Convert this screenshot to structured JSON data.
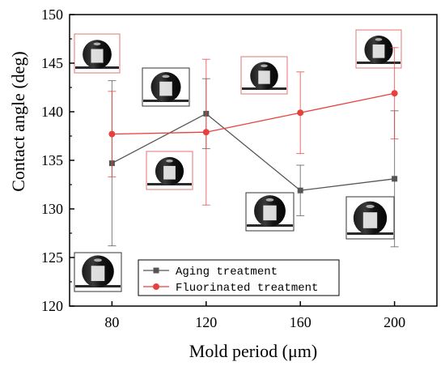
{
  "chart_data": {
    "type": "line",
    "x": [
      80,
      120,
      160,
      200
    ],
    "xlabel": "Mold period (μm)",
    "ylabel": "Contact angle (deg)",
    "xlim": [
      62,
      218
    ],
    "ylim": [
      120,
      150
    ],
    "xticks": [
      80,
      120,
      160,
      200
    ],
    "yticks": [
      120,
      125,
      130,
      135,
      140,
      145,
      150
    ],
    "grid": false,
    "legend_position": "bottom-right",
    "series": [
      {
        "name": "Aging treatment",
        "values": [
          134.7,
          139.8,
          131.9,
          133.1
        ],
        "error_low": [
          126.2,
          136.2,
          129.3,
          126.1
        ],
        "error_high": [
          143.2,
          143.4,
          134.5,
          140.1
        ],
        "color": "#555555",
        "marker": "square"
      },
      {
        "name": "Fluorinated treatment",
        "values": [
          137.7,
          137.9,
          139.9,
          141.9
        ],
        "error_low": [
          133.3,
          130.4,
          135.7,
          137.2
        ],
        "error_high": [
          142.1,
          145.4,
          144.1,
          146.6
        ],
        "color": "#e8413c",
        "marker": "circle"
      }
    ],
    "annotations": [
      {
        "type": "droplet-image",
        "series": "Fluorinated treatment",
        "x": 80
      },
      {
        "type": "droplet-image",
        "series": "Aging treatment",
        "x": 80
      },
      {
        "type": "droplet-image",
        "series": "Aging treatment",
        "x": 120
      },
      {
        "type": "droplet-image",
        "series": "Fluorinated treatment",
        "x": 120
      },
      {
        "type": "droplet-image",
        "series": "Fluorinated treatment",
        "x": 160
      },
      {
        "type": "droplet-image",
        "series": "Aging treatment",
        "x": 160
      },
      {
        "type": "droplet-image",
        "series": "Fluorinated treatment",
        "x": 200
      },
      {
        "type": "droplet-image",
        "series": "Aging treatment",
        "x": 200
      }
    ]
  }
}
